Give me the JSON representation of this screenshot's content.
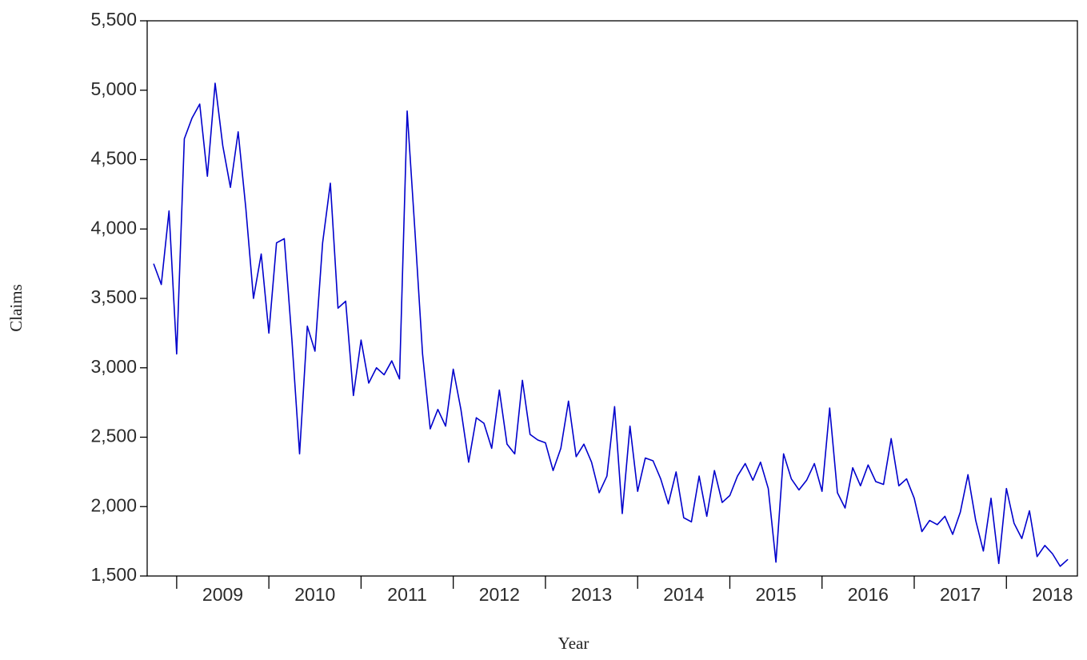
{
  "chart_data": {
    "type": "line",
    "xlabel": "Year",
    "ylabel": "Claims",
    "xlim": [
      2008.68,
      2018.77
    ],
    "xticks": [
      2009,
      2010,
      2011,
      2012,
      2013,
      2014,
      2015,
      2016,
      2017,
      2018
    ],
    "ylim": [
      1500,
      5500
    ],
    "yticks": [
      {
        "value": 1500,
        "label": "1,500"
      },
      {
        "value": 2000,
        "label": "2,000"
      },
      {
        "value": 2500,
        "label": "2,500"
      },
      {
        "value": 3000,
        "label": "3,000"
      },
      {
        "value": 3500,
        "label": "3,500"
      },
      {
        "value": 4000,
        "label": "4,000"
      },
      {
        "value": 4500,
        "label": "4,500"
      },
      {
        "value": 5000,
        "label": "5,000"
      },
      {
        "value": 5500,
        "label": "5,500"
      }
    ],
    "x": [
      2008.75,
      2008.833,
      2008.917,
      2009,
      2009.083,
      2009.167,
      2009.25,
      2009.333,
      2009.417,
      2009.5,
      2009.583,
      2009.667,
      2009.75,
      2009.833,
      2009.917,
      2010,
      2010.083,
      2010.167,
      2010.25,
      2010.333,
      2010.417,
      2010.5,
      2010.583,
      2010.667,
      2010.75,
      2010.833,
      2010.917,
      2011,
      2011.083,
      2011.167,
      2011.25,
      2011.333,
      2011.417,
      2011.5,
      2011.583,
      2011.667,
      2011.75,
      2011.833,
      2011.917,
      2012,
      2012.083,
      2012.167,
      2012.25,
      2012.333,
      2012.417,
      2012.5,
      2012.583,
      2012.667,
      2012.75,
      2012.833,
      2012.917,
      2013,
      2013.083,
      2013.167,
      2013.25,
      2013.333,
      2013.417,
      2013.5,
      2013.583,
      2013.667,
      2013.75,
      2013.833,
      2013.917,
      2014,
      2014.083,
      2014.167,
      2014.25,
      2014.333,
      2014.417,
      2014.5,
      2014.583,
      2014.667,
      2014.75,
      2014.833,
      2014.917,
      2015,
      2015.083,
      2015.167,
      2015.25,
      2015.333,
      2015.417,
      2015.5,
      2015.583,
      2015.667,
      2015.75,
      2015.833,
      2015.917,
      2016,
      2016.083,
      2016.167,
      2016.25,
      2016.333,
      2016.417,
      2016.5,
      2016.583,
      2016.667,
      2016.75,
      2016.833,
      2016.917,
      2017,
      2017.083,
      2017.167,
      2017.25,
      2017.333,
      2017.417,
      2017.5,
      2017.583,
      2017.667,
      2017.75,
      2017.833,
      2017.917,
      2018,
      2018.083,
      2018.167,
      2018.25,
      2018.333,
      2018.417,
      2018.5,
      2018.583,
      2018.667
    ],
    "series": [
      {
        "name": "Claims",
        "color": "#0000cc",
        "values": [
          3750,
          3600,
          4130,
          3100,
          4650,
          4800,
          4900,
          4380,
          5050,
          4600,
          4300,
          4700,
          4150,
          3500,
          3820,
          3250,
          3900,
          3930,
          3200,
          2380,
          3300,
          3120,
          3900,
          4330,
          3430,
          3480,
          2800,
          3200,
          2890,
          3000,
          2950,
          3050,
          2920,
          4850,
          4000,
          3100,
          2560,
          2700,
          2580,
          2990,
          2700,
          2320,
          2640,
          2600,
          2420,
          2840,
          2450,
          2380,
          2910,
          2520,
          2480,
          2460,
          2260,
          2420,
          2760,
          2360,
          2450,
          2320,
          2100,
          2220,
          2720,
          1950,
          2580,
          2110,
          2350,
          2330,
          2200,
          2020,
          2250,
          1920,
          1890,
          2220,
          1930,
          2260,
          2030,
          2080,
          2220,
          2310,
          2190,
          2320,
          2130,
          1600,
          2380,
          2200,
          2120,
          2190,
          2310,
          2110,
          2710,
          2100,
          1990,
          2280,
          2150,
          2300,
          2180,
          2160,
          2490,
          2150,
          2200,
          2060,
          1820,
          1900,
          1870,
          1930,
          1800,
          1960,
          2230,
          1900,
          1680,
          2060,
          1590,
          2130,
          1880,
          1770,
          1970,
          1640,
          1720,
          1660,
          1570,
          1620
        ]
      }
    ]
  }
}
